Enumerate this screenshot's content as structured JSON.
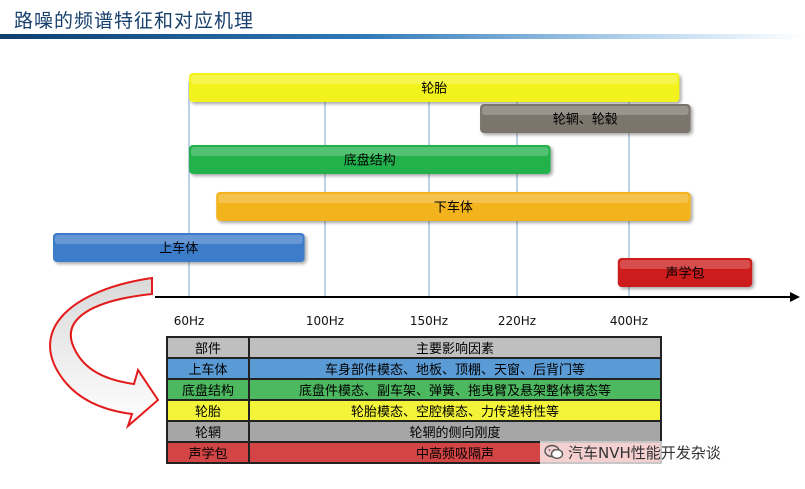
{
  "page": {
    "title": "路噪的频谱特征和对应机理"
  },
  "chart_data": {
    "type": "frequency-range-bars",
    "axis": {
      "ticks": [
        {
          "label": "60Hz",
          "value": 60
        },
        {
          "label": "100Hz",
          "value": 100
        },
        {
          "label": "150Hz",
          "value": 150
        },
        {
          "label": "220Hz",
          "value": 220
        },
        {
          "label": "400Hz",
          "value": 400
        }
      ]
    },
    "bars": [
      {
        "label": "轮胎",
        "color": "#f2f21c",
        "start": 0,
        "end": 4.45
      },
      {
        "label": "轮辋、轮毂",
        "color": "#7b746c",
        "start": 2.58,
        "end": 4.55
      },
      {
        "label": "底盘结构",
        "color": "#22b14c",
        "start": 0,
        "end": 3.3
      },
      {
        "label": "下车体",
        "color": "#f2b31b",
        "start": 0.2,
        "end": 4.55
      },
      {
        "label": "上车体",
        "color": "#3d7cc9",
        "start": -1.0,
        "end": 0.85
      },
      {
        "label": "声学包",
        "color": "#cc1e1e",
        "start": 3.9,
        "end": 5.1
      }
    ]
  },
  "table": {
    "header": [
      "部件",
      "主要影响因素"
    ],
    "rows": [
      {
        "part": "上车体",
        "factors": "车身部件模态、地板、顶棚、天窗、后背门等",
        "color": "#5b9bd5"
      },
      {
        "part": "底盘结构",
        "factors": "底盘件模态、副车架、弹簧、拖曳臂及悬架整体模态等",
        "color": "#4cb85f"
      },
      {
        "part": "轮胎",
        "factors": "轮胎模态、空腔模态、力传递特性等",
        "color": "#f3f33a"
      },
      {
        "part": "轮辋",
        "factors": "轮辋的侧向刚度",
        "color": "#a6a6a6"
      },
      {
        "part": "声学包",
        "factors": "中高频吸隔声",
        "color": "#d34545"
      }
    ],
    "header_color": "#bfbfbf"
  },
  "watermark": {
    "text": "汽车NVH性能开发杂谈"
  }
}
